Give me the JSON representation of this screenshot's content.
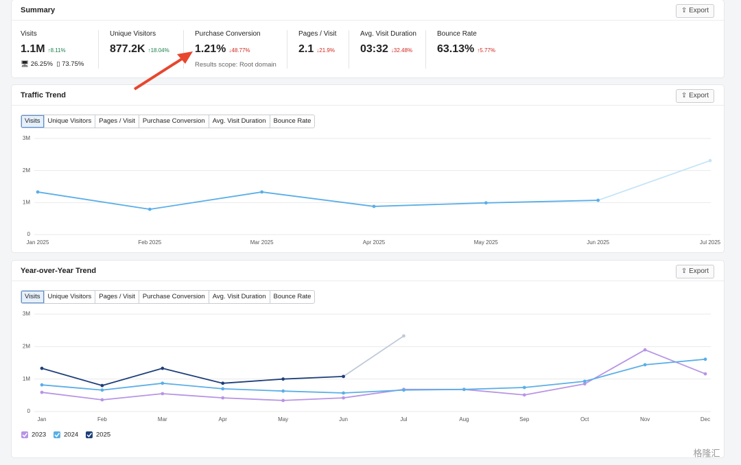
{
  "summary": {
    "title": "Summary",
    "export": "Export",
    "metrics": [
      {
        "label": "Visits",
        "value": "1.1M",
        "change": "↑8.11%",
        "change_color": "#1a7f4b"
      },
      {
        "label": "Unique Visitors",
        "value": "877.2K",
        "change": "↑18.04%",
        "change_color": "#1a7f4b"
      },
      {
        "label": "Purchase Conversion",
        "value": "1.21%",
        "change": "↓48.77%",
        "change_color": "#d0261d",
        "note": "Results scope: Root domain"
      },
      {
        "label": "Pages / Visit",
        "value": "2.1",
        "change": "↓21.9%",
        "change_color": "#d0261d"
      },
      {
        "label": "Avg. Visit Duration",
        "value": "03:32",
        "change": "↓32.48%",
        "change_color": "#d0261d"
      },
      {
        "label": "Bounce Rate",
        "value": "63.13%",
        "change": "↑5.77%",
        "change_color": "#d0261d"
      }
    ],
    "devices": {
      "desktop": "26.25%",
      "mobile": "73.75%"
    }
  },
  "panels": [
    {
      "export": "Export",
      "tabs": [
        "Visits",
        "Unique Visitors",
        "Pages / Visit",
        "Purchase Conversion",
        "Avg. Visit Duration",
        "Bounce Rate"
      ]
    },
    {
      "export": "Export",
      "tabs": [
        "Visits",
        "Unique Visitors",
        "Pages / Visit",
        "Purchase Conversion",
        "Avg. Visit Duration",
        "Bounce Rate"
      ]
    }
  ],
  "chart_data": [
    {
      "type": "line",
      "title": "Traffic Trend",
      "categories": [
        "Jan 2025",
        "Feb 2025",
        "Mar 2025",
        "Apr 2025",
        "May 2025",
        "Jun 2025",
        "Jul 2025"
      ],
      "series": [
        {
          "color": "#5aaee8",
          "incomplete_color": "#c5e4f7",
          "values": [
            1330000,
            790000,
            1330000,
            880000,
            990000,
            1070000,
            2310000
          ]
        }
      ],
      "ylim": [
        0,
        3000000
      ],
      "yticks": [
        0,
        {
          "value": 1000000,
          "label": "1M"
        },
        {
          "value": 2000000,
          "label": "2M"
        },
        {
          "value": 3000000,
          "label": "3M"
        }
      ],
      "grid": true
    },
    {
      "type": "line",
      "title": "Year-over-Year Trend",
      "categories": [
        "Jan",
        "Feb",
        "Mar",
        "Apr",
        "May",
        "Jun",
        "Jul",
        "Aug",
        "Sep",
        "Oct",
        "Nov",
        "Dec"
      ],
      "series": [
        {
          "name": "2023",
          "color": "#b794e6",
          "values": [
            590000,
            360000,
            550000,
            420000,
            340000,
            420000,
            680000,
            680000,
            510000,
            850000,
            1900000,
            1160000
          ]
        },
        {
          "name": "2024",
          "color": "#5aaee8",
          "values": [
            820000,
            660000,
            870000,
            700000,
            630000,
            570000,
            660000,
            680000,
            740000,
            930000,
            1440000,
            1610000
          ]
        },
        {
          "name": "2025",
          "color": "#1e3f7a",
          "incomplete_color": "#c0cad8",
          "values": [
            1330000,
            800000,
            1330000,
            870000,
            1000000,
            1080000,
            2330000,
            null,
            null,
            null,
            null,
            null
          ]
        }
      ],
      "ylim": [
        0,
        3000000
      ],
      "yticks": [
        0,
        {
          "value": 1000000,
          "label": "1M"
        },
        {
          "value": 2000000,
          "label": "2M"
        },
        {
          "value": 3000000,
          "label": "3M"
        }
      ],
      "grid": true,
      "legend": "bottom-left"
    }
  ],
  "watermark": "格隆汇"
}
